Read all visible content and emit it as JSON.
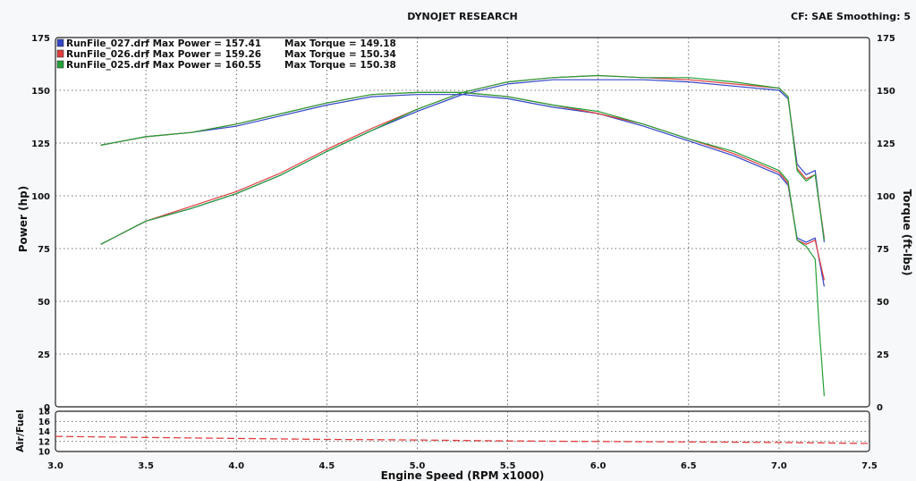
{
  "header": {
    "title": "DYNOJET RESEARCH",
    "settings": "CF: SAE  Smoothing: 5"
  },
  "chart_data": [
    {
      "type": "line",
      "xlabel": "Engine Speed (RPM x1000)",
      "ylabel_left": "Power (hp)",
      "ylabel_right": "Torque (ft-lbs)",
      "xlim": [
        3.0,
        7.5
      ],
      "ylim_left": [
        0,
        175
      ],
      "ylim_right": [
        0,
        175
      ],
      "x_ticks": [
        "3.0",
        "3.5",
        "4.0",
        "4.5",
        "5.0",
        "5.5",
        "6.0",
        "6.5",
        "7.0",
        "7.5"
      ],
      "y_ticks_left": [
        "0",
        "25",
        "50",
        "75",
        "100",
        "125",
        "150",
        "175"
      ],
      "y_ticks_right": [
        "0",
        "25",
        "50",
        "75",
        "100",
        "125",
        "150",
        "175"
      ],
      "grid": true,
      "legend": [
        {
          "file": "RunFile_027.drf",
          "max_power_label": "Max Power = 157.41",
          "max_torque_label": "Max Torque = 149.18",
          "color": "#3246c8"
        },
        {
          "file": "RunFile_026.drf",
          "max_power_label": "Max Power = 159.26",
          "max_torque_label": "Max Torque = 150.34",
          "color": "#e03c3c"
        },
        {
          "file": "RunFile_025.drf",
          "max_power_label": "Max Power = 160.55",
          "max_torque_label": "Max Torque = 150.38",
          "color": "#24a038"
        }
      ],
      "series": [
        {
          "name": "RunFile_027.drf",
          "kind": "power",
          "color": "#3246c8",
          "x": [
            3.25,
            3.5,
            3.75,
            4.0,
            4.25,
            4.5,
            4.75,
            5.0,
            5.25,
            5.5,
            5.75,
            6.0,
            6.25,
            6.5,
            6.75,
            7.0,
            7.05,
            7.1,
            7.15,
            7.2,
            7.25
          ],
          "y": [
            77,
            88,
            94,
            101,
            110,
            121,
            131,
            140,
            148,
            153,
            155,
            155,
            155,
            154,
            152,
            150,
            146,
            115,
            110,
            112,
            78
          ]
        },
        {
          "name": "RunFile_026.drf",
          "kind": "power",
          "color": "#e03c3c",
          "x": [
            3.25,
            3.5,
            3.75,
            4.0,
            4.25,
            4.5,
            4.75,
            5.0,
            5.25,
            5.5,
            5.75,
            6.0,
            6.25,
            6.5,
            6.75,
            7.0,
            7.05,
            7.1,
            7.15,
            7.2,
            7.25
          ],
          "y": [
            77,
            88,
            95,
            102,
            111,
            122,
            132,
            141,
            149,
            154,
            156,
            157,
            156,
            155,
            153,
            151,
            147,
            113,
            108,
            110,
            80
          ]
        },
        {
          "name": "RunFile_025.drf",
          "kind": "power",
          "color": "#24a038",
          "x": [
            3.25,
            3.5,
            3.75,
            4.0,
            4.25,
            4.5,
            4.75,
            5.0,
            5.25,
            5.5,
            5.75,
            6.0,
            6.25,
            6.5,
            6.75,
            7.0,
            7.05,
            7.1,
            7.15,
            7.2,
            7.25
          ],
          "y": [
            77,
            88,
            94,
            101,
            110,
            121,
            131,
            141,
            149,
            154,
            156,
            157,
            156,
            156,
            154,
            151,
            147,
            112,
            107,
            110,
            79
          ]
        },
        {
          "name": "RunFile_027.drf",
          "kind": "torque",
          "color": "#3246c8",
          "x": [
            3.25,
            3.5,
            3.75,
            4.0,
            4.25,
            4.5,
            4.75,
            5.0,
            5.25,
            5.5,
            5.75,
            6.0,
            6.25,
            6.5,
            6.75,
            7.0,
            7.05,
            7.1,
            7.15,
            7.2,
            7.25
          ],
          "y": [
            124,
            128,
            130,
            133,
            138,
            143,
            147,
            148,
            148,
            146,
            142,
            139,
            133,
            126,
            119,
            110,
            105,
            80,
            78,
            80,
            57
          ]
        },
        {
          "name": "RunFile_026.drf",
          "kind": "torque",
          "color": "#e03c3c",
          "x": [
            3.25,
            3.5,
            3.75,
            4.0,
            4.25,
            4.5,
            4.75,
            5.0,
            5.25,
            5.5,
            5.75,
            6.0,
            6.25,
            6.5,
            6.75,
            7.0,
            7.05,
            7.1,
            7.15,
            7.2,
            7.25
          ],
          "y": [
            124,
            128,
            130,
            134,
            139,
            144,
            148,
            149,
            149,
            147,
            143,
            139,
            134,
            127,
            120,
            111,
            106,
            79,
            77,
            79,
            60
          ]
        },
        {
          "name": "RunFile_025.drf",
          "kind": "torque",
          "color": "#24a038",
          "x": [
            3.25,
            3.5,
            3.75,
            4.0,
            4.25,
            4.5,
            4.75,
            5.0,
            5.25,
            5.5,
            5.75,
            6.0,
            6.25,
            6.5,
            6.75,
            7.0,
            7.05,
            7.1,
            7.15,
            7.2,
            7.22,
            7.25
          ],
          "y": [
            124,
            128,
            130,
            134,
            139,
            144,
            148,
            149,
            149,
            147,
            143,
            140,
            134,
            127,
            121,
            112,
            107,
            79,
            76,
            70,
            40,
            5
          ]
        }
      ]
    },
    {
      "type": "line",
      "ylabel": "Air/Fuel",
      "ylim": [
        10,
        18
      ],
      "y_ticks": [
        "10",
        "12",
        "14",
        "16",
        "18"
      ],
      "xlim": [
        3.0,
        7.5
      ],
      "grid": true,
      "series": [
        {
          "name": "RunFile_026.drf",
          "color": "#e03c3c",
          "dashed": true,
          "x": [
            3.0,
            3.5,
            4.0,
            4.5,
            5.0,
            5.5,
            6.0,
            6.5,
            7.0,
            7.25,
            7.5
          ],
          "y": [
            13.0,
            12.8,
            12.6,
            12.4,
            12.3,
            12.1,
            12.0,
            11.9,
            11.8,
            11.7,
            11.6
          ]
        }
      ]
    }
  ]
}
